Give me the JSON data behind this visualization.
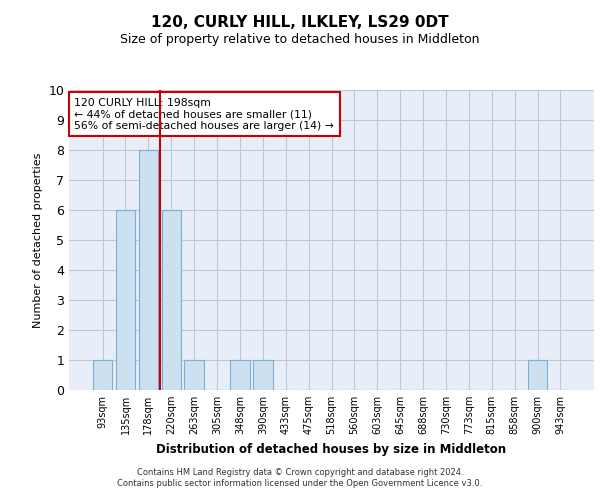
{
  "title": "120, CURLY HILL, ILKLEY, LS29 0DT",
  "subtitle": "Size of property relative to detached houses in Middleton",
  "xlabel": "Distribution of detached houses by size in Middleton",
  "ylabel": "Number of detached properties",
  "categories": [
    "93sqm",
    "135sqm",
    "178sqm",
    "220sqm",
    "263sqm",
    "305sqm",
    "348sqm",
    "390sqm",
    "433sqm",
    "475sqm",
    "518sqm",
    "560sqm",
    "603sqm",
    "645sqm",
    "688sqm",
    "730sqm",
    "773sqm",
    "815sqm",
    "858sqm",
    "900sqm",
    "943sqm"
  ],
  "values": [
    1,
    6,
    8,
    6,
    1,
    0,
    1,
    1,
    0,
    0,
    0,
    0,
    0,
    0,
    0,
    0,
    0,
    0,
    0,
    1,
    0
  ],
  "bar_color": "#cce0f0",
  "bar_edge_color": "#7ab0d4",
  "red_line_x": 2.5,
  "annotation_text": "120 CURLY HILL: 198sqm\n← 44% of detached houses are smaller (11)\n56% of semi-detached houses are larger (14) →",
  "annotation_box_color": "#ffffff",
  "annotation_box_edge_color": "#cc0000",
  "ylim": [
    0,
    10
  ],
  "yticks": [
    0,
    1,
    2,
    3,
    4,
    5,
    6,
    7,
    8,
    9,
    10
  ],
  "grid_color": "#c0c8d8",
  "background_color": "#e8eef8",
  "footer_line1": "Contains HM Land Registry data © Crown copyright and database right 2024.",
  "footer_line2": "Contains public sector information licensed under the Open Government Licence v3.0."
}
